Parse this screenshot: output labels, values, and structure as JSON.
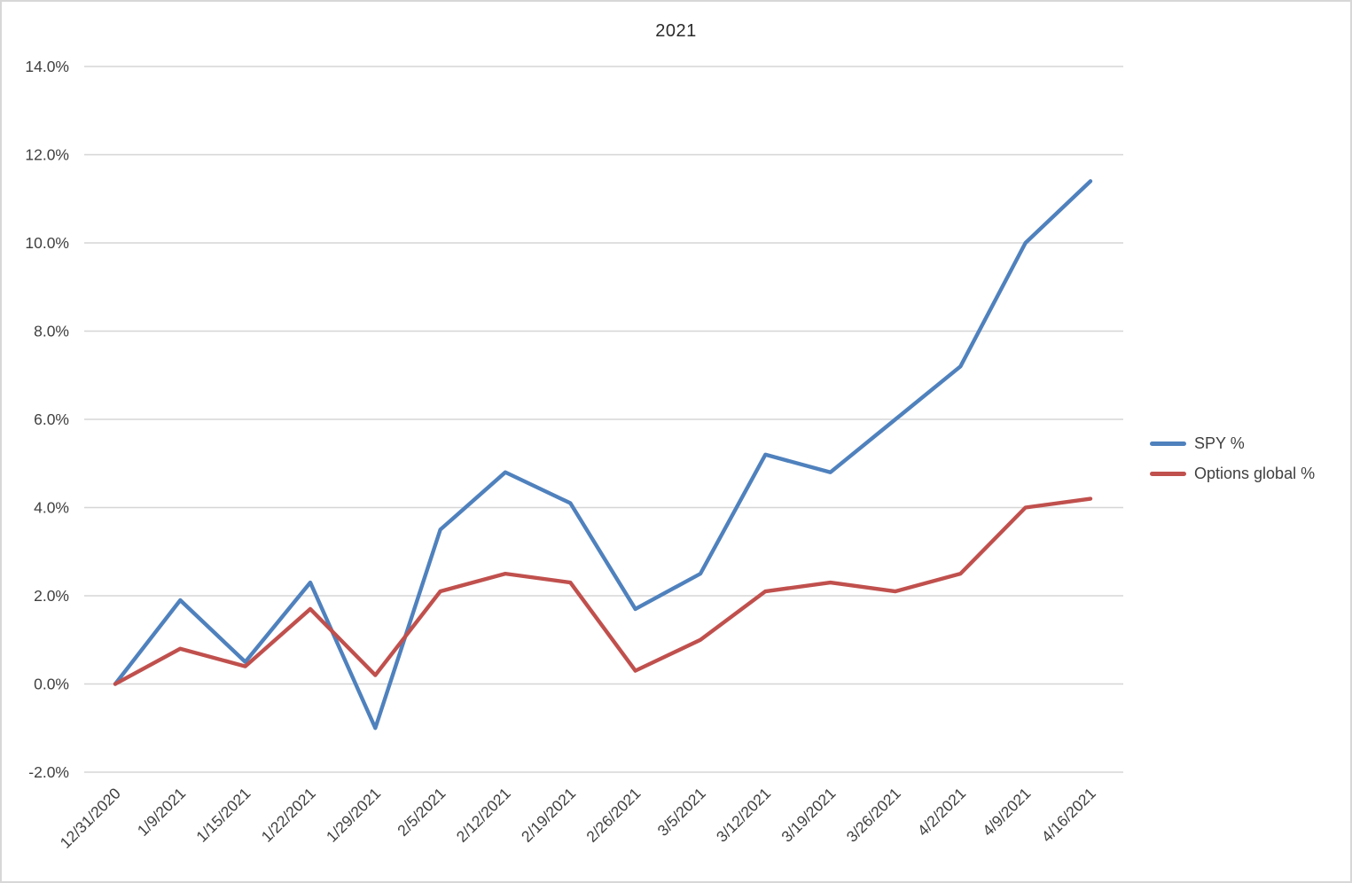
{
  "title": "2021",
  "chart_data": {
    "type": "line",
    "title": "2021",
    "xlabel": "",
    "ylabel": "",
    "categories": [
      "12/31/2020",
      "1/9/2021",
      "1/15/2021",
      "1/22/2021",
      "1/29/2021",
      "2/5/2021",
      "2/12/2021",
      "2/19/2021",
      "2/26/2021",
      "3/5/2021",
      "3/12/2021",
      "3/19/2021",
      "3/26/2021",
      "4/2/2021",
      "4/9/2021",
      "4/16/2021"
    ],
    "series": [
      {
        "name": "SPY %",
        "color": "#4F81BD",
        "values": [
          0.0,
          1.9,
          0.5,
          2.3,
          -1.0,
          3.5,
          4.8,
          4.1,
          1.7,
          2.5,
          5.2,
          4.8,
          6.0,
          7.2,
          10.0,
          11.4
        ]
      },
      {
        "name": "Options global %",
        "color": "#C0504D",
        "values": [
          0.0,
          0.8,
          0.4,
          1.7,
          0.2,
          2.1,
          2.5,
          2.3,
          0.3,
          1.0,
          2.1,
          2.3,
          2.1,
          2.5,
          4.0,
          4.2
        ]
      }
    ],
    "ylim": [
      -2,
      14
    ],
    "ytick_step": 2,
    "ytick_labels": [
      "-2.0%",
      "0.0%",
      "2.0%",
      "4.0%",
      "6.0%",
      "8.0%",
      "10.0%",
      "12.0%",
      "14.0%"
    ],
    "grid": true,
    "legend_position": "right",
    "units": "percent"
  },
  "colors": {
    "grid": "#D6D6D6",
    "axis_text": "#3f3f3f",
    "frame_border": "#D7D7D7",
    "background": "#FFFFFF",
    "series_blue": "#4F81BD",
    "series_red": "#C0504D"
  }
}
